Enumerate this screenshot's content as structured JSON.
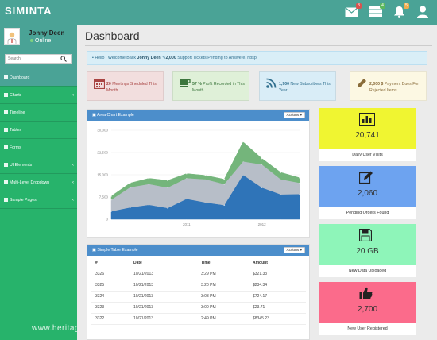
{
  "app": {
    "brand": "SIMINTA"
  },
  "topbar": {
    "icons": [
      {
        "name": "envelope-icon",
        "badge": "3",
        "badge_color": "#d9534f"
      },
      {
        "name": "tasks-icon",
        "badge": "4",
        "badge_color": "#5cb85c"
      },
      {
        "name": "bell-icon",
        "badge": "5",
        "badge_color": "#f0ad4e"
      },
      {
        "name": "user-icon",
        "badge": ""
      }
    ]
  },
  "user": {
    "name": "Jonny Deen",
    "status": "Online"
  },
  "search": {
    "placeholder": "Search"
  },
  "nav": [
    {
      "label": "Dashboard",
      "chevron": false,
      "active": true
    },
    {
      "label": "Charts",
      "chevron": true
    },
    {
      "label": "Timeline",
      "chevron": false
    },
    {
      "label": "Tables",
      "chevron": false
    },
    {
      "label": "Forms",
      "chevron": false
    },
    {
      "label": "UI Elements",
      "chevron": true
    },
    {
      "label": "Multi-Level Dropdown",
      "chevron": true
    },
    {
      "label": "Sample Pages",
      "chevron": true
    }
  ],
  "watermark": "www.heritagechristiancollege.com",
  "page": {
    "title": "Dashboard"
  },
  "alert": {
    "pre": "Hello ! Welcome Back ",
    "name": "Jonny Deen",
    "mid": " ",
    "count": "2,000",
    "post": " Support Tickets Pending to Answere. nbsp;"
  },
  "stats": [
    {
      "bold": "20",
      "text": " Meetings Sheduled This Month",
      "bg": "#f2dede",
      "icon": "calendar-icon",
      "icon_color": "#a94442"
    },
    {
      "bold": "57 %",
      "text": " Profit Recorded in This Month",
      "bg": "#dff0d8",
      "icon": "coffee-icon",
      "icon_color": "#3c763d"
    },
    {
      "bold": "1,900",
      "text": " New Subscribers This Year",
      "bg": "#d9edf7",
      "icon": "rss-icon",
      "icon_color": "#31708f"
    },
    {
      "bold": "2,000 $",
      "text": " Payment Dues For Rejected Items",
      "bg": "#fcf8e3",
      "icon": "pencil-icon",
      "icon_color": "#8a6d3b"
    }
  ],
  "area_panel": {
    "title": "Area Chart Example",
    "actions": "Actions"
  },
  "chart_data": {
    "type": "area",
    "x": [
      2010.0,
      2010.25,
      2010.5,
      2010.75,
      2011.0,
      2011.25,
      2011.5,
      2011.75,
      2012.0,
      2012.25,
      2012.5
    ],
    "x_ticks": [
      "2011",
      "2012"
    ],
    "y_ticks": [
      "0",
      "7,500",
      "15,000",
      "22,500",
      "30,000"
    ],
    "ylim": [
      0,
      30000
    ],
    "series": [
      {
        "values": [
          2700,
          4000,
          4900,
          3800,
          6900,
          5700,
          4800,
          15000,
          10700,
          8400,
          8500
        ],
        "color": "#2f74b8"
      },
      {
        "values": [
          3900,
          6800,
          7000,
          6900,
          7000,
          7800,
          7100,
          4500,
          7800,
          5100,
          3800
        ],
        "color": "#b7bec8"
      },
      {
        "values": [
          1200,
          1400,
          1900,
          2400,
          1500,
          1300,
          1600,
          6600,
          2000,
          2300,
          1700
        ],
        "color": "#74b57b"
      }
    ]
  },
  "table_panel": {
    "title": "Simple Table Example",
    "actions": "Actions",
    "columns": [
      "#",
      "Date",
      "Time",
      "Amount"
    ],
    "rows": [
      [
        "3326",
        "10/21/2013",
        "3:29 PM",
        "$321.33"
      ],
      [
        "3325",
        "10/21/2013",
        "3:20 PM",
        "$234.34"
      ],
      [
        "3324",
        "10/21/2013",
        "3:03 PM",
        "$724.17"
      ],
      [
        "3323",
        "10/21/2013",
        "3:00 PM",
        "$23.71"
      ],
      [
        "3322",
        "10/21/2013",
        "2:49 PM",
        "$8345.23"
      ]
    ]
  },
  "tiles": [
    {
      "value": "20,741",
      "label": "Daily User Visits",
      "bg": "#f0f531",
      "icon": "bar-chart-icon"
    },
    {
      "value": "2,060",
      "label": "Pending Orders Found",
      "bg": "#6da3f0",
      "icon": "edit-icon"
    },
    {
      "value": "20 GB",
      "label": "New Data Uploaded",
      "bg": "#8ef5b9",
      "icon": "save-icon"
    },
    {
      "value": "2,700",
      "label": "New User Registered",
      "bg": "#fb6b8b",
      "icon": "thumbs-up-icon"
    }
  ]
}
